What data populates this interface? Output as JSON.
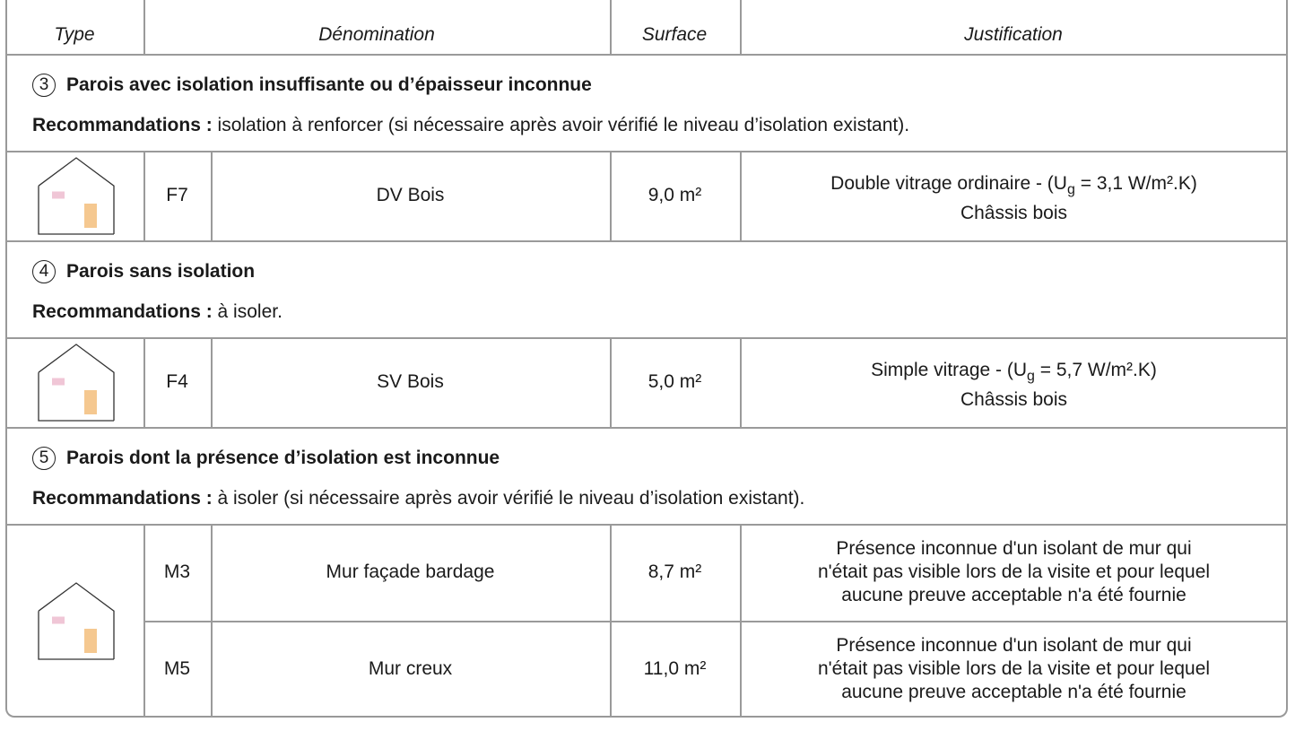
{
  "header": [
    "Type",
    "Dénomination",
    "Surface",
    "Justification"
  ],
  "sections": [
    {
      "number": "3",
      "title": "Parois avec isolation insuffisante ou d’épaisseur inconnue",
      "recommendation_label": "Recommandations :",
      "recommendation": "isolation à renforcer (si nécessaire après avoir vérifié le niveau d’isolation existant).",
      "rows": [
        {
          "code": "F7",
          "name": "DV Bois",
          "surface": "9,0 m²",
          "justification_parts": [
            "Double vitrage ordinaire - (U",
            "g",
            " = 3,1 W/m².K)"
          ],
          "justification_lines": [
            "Châssis bois"
          ]
        }
      ]
    },
    {
      "number": "4",
      "title": "Parois sans isolation",
      "recommendation_label": "Recommandations :",
      "recommendation": "à isoler.",
      "rows": [
        {
          "code": "F4",
          "name": "SV Bois",
          "surface": "5,0 m²",
          "justification_parts": [
            "Simple vitrage - (U",
            "g",
            " = 5,7 W/m².K)"
          ],
          "justification_lines": [
            "Châssis bois"
          ]
        }
      ]
    },
    {
      "number": "5",
      "title": "Parois dont la présence d’isolation est inconnue",
      "recommendation_label": "Recommandations :",
      "recommendation": "à isoler (si nécessaire après avoir vérifié le niveau d’isolation existant).",
      "rows": [
        {
          "code": "M3",
          "name": "Mur façade bardage",
          "surface": "8,7 m²",
          "justification_lines": [
            "Présence inconnue d'un isolant de mur qui",
            "n'était pas visible lors de la visite et pour lequel",
            "aucune preuve acceptable n'a été fournie"
          ]
        },
        {
          "code": "M5",
          "name": "Mur creux",
          "surface": "11,0 m²",
          "justification_lines": [
            "Présence inconnue d'un isolant de mur qui",
            "n'était pas visible lors de la visite et pour lequel",
            "aucune preuve acceptable n'a été fournie"
          ]
        }
      ]
    }
  ]
}
